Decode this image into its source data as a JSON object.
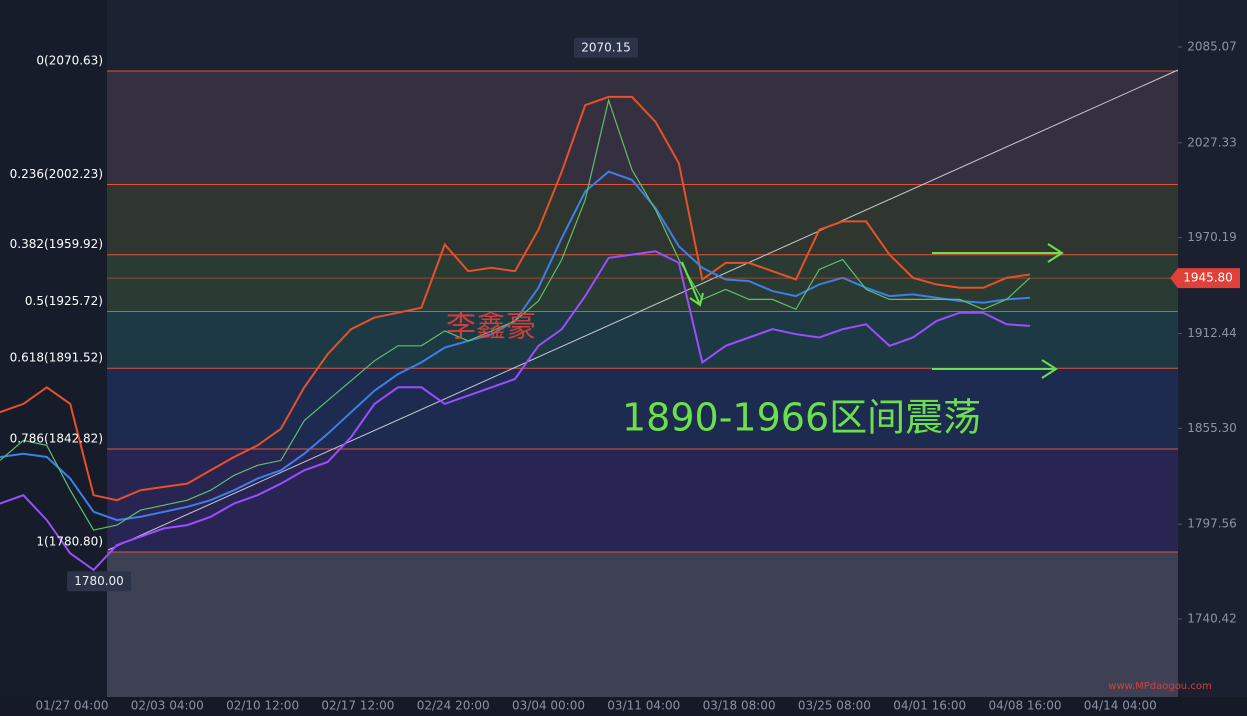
{
  "chart_data": {
    "type": "line",
    "ylim": [
      1693.4,
      2113.4
    ],
    "yticks": [
      2085.07,
      2027.33,
      1970.19,
      1912.44,
      {
        "value": 1855.3,
        "label": "1855.30"
      },
      1797.56,
      1740.42
    ],
    "xticks": [
      "01/27 04:00",
      "02/03 04:00",
      "02/10 12:00",
      "02/17 12:00",
      "02/24 20:00",
      "03/04 00:00",
      "03/11 04:00",
      "03/18 08:00",
      "03/25 08:00",
      "04/01 16:00",
      "04/08 16:00",
      "04/14 04:00"
    ],
    "series": [
      {
        "color": "#e8502a",
        "values": [
          1865,
          1870,
          1880,
          1870,
          1815,
          1812,
          1818,
          1820,
          1822,
          1830,
          1838,
          1845,
          1855,
          1880,
          1900,
          1915,
          1922,
          1925,
          1928,
          1966,
          1950,
          1952,
          1950,
          1975,
          2010,
          2050,
          2055,
          2055,
          2040,
          2015,
          1945,
          1955,
          1955,
          1950,
          1945,
          1975,
          1980,
          1980,
          1960,
          1946,
          1942,
          1940,
          1940,
          1946,
          1948
        ]
      },
      {
        "color": "#3d7fe6",
        "values": [
          1838,
          1840,
          1838,
          1825,
          1805,
          1800,
          1802,
          1805,
          1808,
          1812,
          1818,
          1825,
          1830,
          1840,
          1852,
          1865,
          1878,
          1888,
          1895,
          1904,
          1908,
          1912,
          1920,
          1940,
          1970,
          1998,
          2010,
          2005,
          1988,
          1965,
          1952,
          1945,
          1944,
          1938,
          1935,
          1942,
          1946,
          1940,
          1935,
          1936,
          1934,
          1932,
          1931,
          1933,
          1934
        ]
      },
      {
        "color": "#9b4dff",
        "values": [
          1810,
          1815,
          1800,
          1780,
          1770,
          1785,
          1790,
          1795,
          1797,
          1802,
          1810,
          1815,
          1822,
          1830,
          1835,
          1850,
          1870,
          1880,
          1880,
          1870,
          1875,
          1880,
          1885,
          1905,
          1915,
          1935,
          1958,
          1960,
          1962,
          1955,
          1895,
          1905,
          1910,
          1915,
          1912,
          1910,
          1915,
          1918,
          1905,
          1910,
          1920,
          1925,
          1925,
          1918,
          1917
        ]
      },
      {
        "color": "#5fbf6a",
        "values": [
          1836,
          1848,
          1845,
          1818,
          1794,
          1797,
          1806,
          1809,
          1812,
          1818,
          1827,
          1833,
          1836,
          1860,
          1872,
          1884,
          1896,
          1905,
          1905,
          1914,
          1908,
          1914,
          1920,
          1932,
          1957,
          1993,
          2053,
          2011,
          1987,
          1957,
          1933,
          1939,
          1933,
          1933,
          1927,
          1951,
          1957,
          1939,
          1933,
          1933,
          1933,
          1933,
          1927,
          1933,
          1946
        ]
      }
    ],
    "fib_levels": [
      {
        "value": 2070.63,
        "label": "0(2070.63)",
        "color": "#3a3342"
      },
      {
        "value": 2002.23,
        "label": "0.236(2002.23)",
        "color": "#33392f"
      },
      {
        "value": 1959.92,
        "label": "0.382(1959.92)",
        "color": "#2b4034"
      },
      {
        "value": 1925.72,
        "label": "0.5(1925.72)",
        "color": "#1d3d48"
      },
      {
        "value": 1891.52,
        "label": "0.618(1891.52)",
        "color": "#1f2d57"
      },
      {
        "value": 1842.82,
        "label": "0.786(1842.82)",
        "color": "#2c2658"
      },
      {
        "value": 1780.8,
        "label": "1(1780.80)",
        "color": "#44465a"
      }
    ],
    "high_marker": {
      "value": 2070.15,
      "label": "2070.15"
    },
    "low_marker": {
      "value": 1780,
      "label": "1780.00"
    },
    "current_price": {
      "value": 1945.8,
      "label": "1945.80"
    },
    "author": "李鑫豪",
    "note": "1890-1966区间震荡",
    "watermark": "www.MPdaogou.com"
  }
}
